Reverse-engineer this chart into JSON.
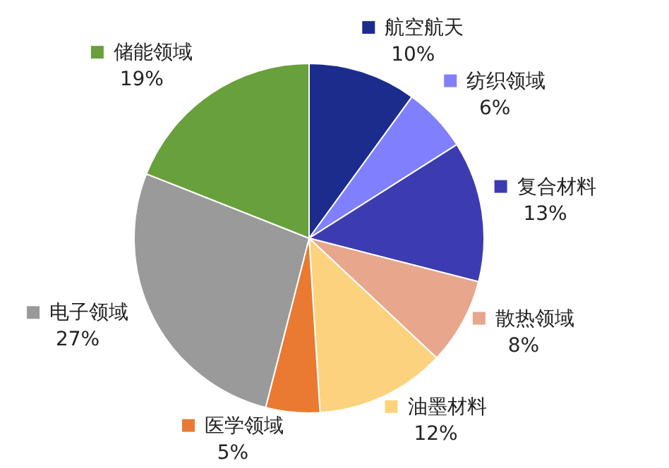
{
  "chart_data": {
    "type": "pie",
    "categories": [
      "航空航天",
      "纺织领域",
      "复合材料",
      "散热领域",
      "油墨材料",
      "医学领域",
      "电子领域",
      "储能领域"
    ],
    "values": [
      10,
      6,
      13,
      8,
      12,
      5,
      27,
      19
    ],
    "value_labels": [
      "10%",
      "6%",
      "13%",
      "8%",
      "12%",
      "5%",
      "27%",
      "19%"
    ],
    "colors": [
      "#1c2c8c",
      "#8080ff",
      "#3c3cb0",
      "#e8a68c",
      "#fdd27e",
      "#ea7a32",
      "#9a9a9a",
      "#68a03c"
    ],
    "legend": "right"
  }
}
